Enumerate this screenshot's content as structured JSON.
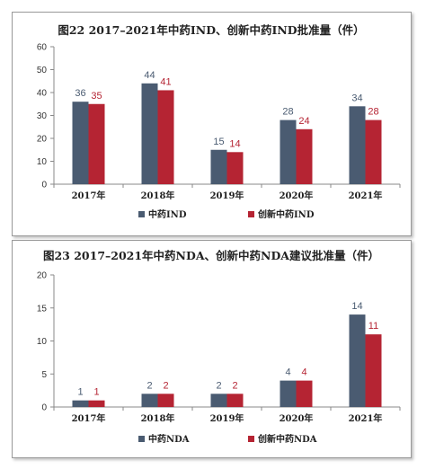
{
  "colors": {
    "series_a": "#4a5b71",
    "series_b": "#b52433",
    "axis": "#888888",
    "grid": "#cfcfcf"
  },
  "chart_data": [
    {
      "type": "bar",
      "title": "图22 2017–2021年中药IND、创新中药IND批准量（件）",
      "categories": [
        "2017年",
        "2018年",
        "2019年",
        "2020年",
        "2021年"
      ],
      "series": [
        {
          "name": "中药IND",
          "values": [
            36,
            44,
            15,
            28,
            34
          ]
        },
        {
          "name": "创新中药IND",
          "values": [
            35,
            41,
            14,
            24,
            28
          ]
        }
      ],
      "ylim": [
        0,
        60
      ],
      "yticks": [
        0,
        10,
        20,
        30,
        40,
        50,
        60
      ],
      "legend": "bottom",
      "grid": false
    },
    {
      "type": "bar",
      "title": "图23 2017–2021年中药NDA、创新中药NDA建议批准量（件）",
      "categories": [
        "2017年",
        "2018年",
        "2019年",
        "2020年",
        "2021年"
      ],
      "series": [
        {
          "name": "中药NDA",
          "values": [
            1,
            2,
            2,
            4,
            14
          ]
        },
        {
          "name": "创新中药NDA",
          "values": [
            1,
            2,
            2,
            4,
            11
          ]
        }
      ],
      "ylim": [
        0,
        20
      ],
      "yticks": [
        0,
        5,
        10,
        15,
        20
      ],
      "legend": "bottom",
      "grid": false
    }
  ]
}
